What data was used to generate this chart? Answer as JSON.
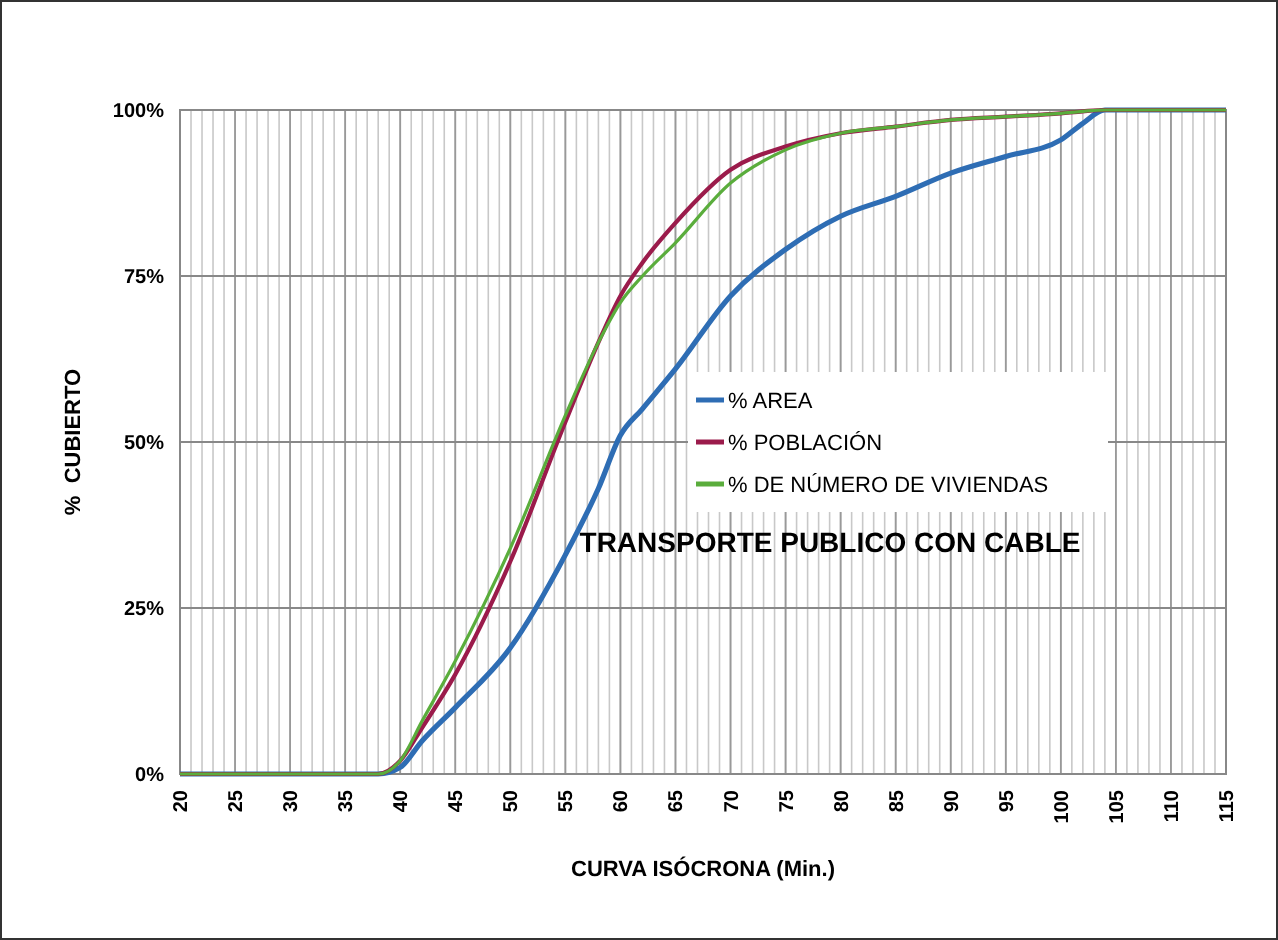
{
  "chart_data": {
    "type": "line",
    "title": "TRANSPORTE PUBLICO CON CABLE",
    "xlabel": "CURVA ISÓCRONA (Min.)",
    "ylabel": "%  CUBIERTO",
    "x": [
      20,
      38,
      40,
      42,
      45,
      50,
      55,
      58,
      60,
      62,
      65,
      70,
      75,
      80,
      85,
      90,
      95,
      100,
      102,
      104,
      115
    ],
    "xlim": [
      20,
      115
    ],
    "xticks": [
      20,
      25,
      30,
      35,
      40,
      45,
      50,
      55,
      60,
      65,
      70,
      75,
      80,
      85,
      90,
      95,
      100,
      105,
      110,
      115
    ],
    "ylim": [
      0,
      100
    ],
    "yticks": [
      {
        "value": 0,
        "label": "0%"
      },
      {
        "value": 25,
        "label": "25%"
      },
      {
        "value": 50,
        "label": "50%"
      },
      {
        "value": 75,
        "label": "75%"
      },
      {
        "value": 100,
        "label": "100%"
      }
    ],
    "grid": true,
    "legend": "right",
    "marker": "none",
    "line_style": "solid",
    "series": [
      {
        "name": "% AREA",
        "color": "#2e6db4",
        "values": [
          0,
          0,
          1,
          5,
          10,
          19,
          33,
          43,
          51,
          55,
          61,
          72,
          79,
          84,
          87,
          90.5,
          93,
          95.5,
          98,
          100,
          100
        ]
      },
      {
        "name": "% POBLACIÓN",
        "color": "#9b1b4b",
        "values": [
          0,
          0,
          2,
          7,
          15,
          32,
          53,
          65,
          72,
          77,
          83,
          91,
          94.5,
          96.5,
          97.5,
          98.5,
          99,
          99.5,
          99.8,
          100,
          100
        ]
      },
      {
        "name": "% DE NÚMERO DE VIVIENDAS",
        "color": "#5aad3c",
        "values": [
          0,
          0,
          2,
          8,
          17,
          34,
          54,
          65,
          71,
          75,
          80,
          89,
          94,
          96.5,
          97.5,
          98.5,
          99,
          99.5,
          99.8,
          100,
          100
        ]
      }
    ]
  }
}
